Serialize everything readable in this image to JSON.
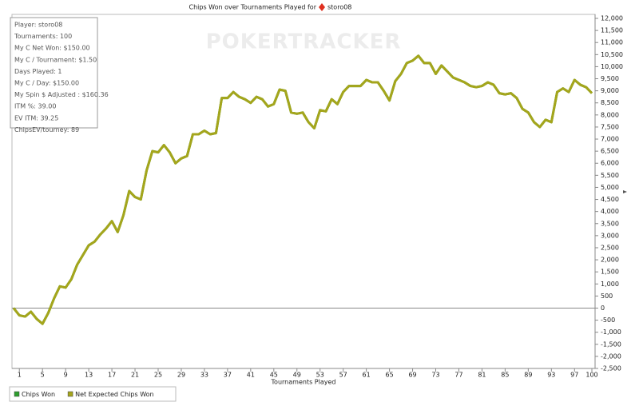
{
  "chart_data": {
    "type": "line",
    "title": "Chips Won over Tournaments Played for",
    "title_player": "storo08",
    "watermark": "POKERTRACKER",
    "xlabel": "Tournaments Played",
    "info": [
      "Player: storo08",
      "Tournaments: 100",
      "My C Net Won: $150.00",
      "My C / Tournament: $1.50",
      "Days Played: 1",
      "My C / Day: $150.00",
      "My Spin $ Adjusted : $160.36",
      "ITM %: 39.00",
      "EV ITM: 39.25",
      "ChipsEV/tourney: 89"
    ],
    "x": [
      0,
      1,
      2,
      3,
      4,
      5,
      6,
      7,
      8,
      9,
      10,
      11,
      12,
      13,
      14,
      15,
      16,
      17,
      18,
      19,
      20,
      21,
      22,
      23,
      24,
      25,
      26,
      27,
      28,
      29,
      30,
      31,
      32,
      33,
      34,
      35,
      36,
      37,
      38,
      39,
      40,
      41,
      42,
      43,
      44,
      45,
      46,
      47,
      48,
      49,
      50,
      51,
      52,
      53,
      54,
      55,
      56,
      57,
      58,
      59,
      60,
      61,
      62,
      63,
      64,
      65,
      66,
      67,
      68,
      69,
      70,
      71,
      72,
      73,
      74,
      75,
      76,
      77,
      78,
      79,
      80,
      81,
      82,
      83,
      84,
      85,
      86,
      87,
      88,
      89,
      90,
      91,
      92,
      93,
      94,
      95,
      96,
      97,
      98,
      99,
      100
    ],
    "series": [
      {
        "name": "Chips Won",
        "color": "#2e9e2e",
        "values": [
          0,
          -300,
          -350,
          -150,
          -450,
          -650,
          -200,
          400,
          900,
          850,
          1200,
          1800,
          2200,
          2600,
          2750,
          3050,
          3300,
          3600,
          3150,
          3850,
          4850,
          4600,
          4500,
          5700,
          6500,
          6450,
          6750,
          6450,
          6000,
          6200,
          6300,
          7200,
          7200,
          7350,
          7200,
          7250,
          8700,
          8700,
          8950,
          8750,
          8650,
          8500,
          8750,
          8650,
          8350,
          8450,
          9050,
          9000,
          8100,
          8050,
          8100,
          7700,
          7450,
          8200,
          8150,
          8650,
          8450,
          8950,
          9200,
          9200,
          9200,
          9450,
          9350,
          9350,
          9000,
          8600,
          9400,
          9700,
          10150,
          10250,
          10450,
          10150,
          10150,
          9700,
          10050,
          9800,
          9550,
          9450,
          9350,
          9200,
          9150,
          9200,
          9350,
          9250,
          8900,
          8850,
          8900,
          8700,
          8250,
          8100,
          7700,
          7500,
          7800,
          7700,
          8950,
          9100,
          8950,
          9450,
          9250,
          9150,
          8900
        ]
      },
      {
        "name": "Net Expected Chips Won",
        "color": "#a5a51c",
        "values": [
          0,
          -300,
          -350,
          -150,
          -450,
          -650,
          -200,
          400,
          900,
          850,
          1200,
          1800,
          2200,
          2600,
          2750,
          3050,
          3300,
          3600,
          3150,
          3850,
          4850,
          4600,
          4500,
          5700,
          6500,
          6450,
          6750,
          6450,
          6000,
          6200,
          6300,
          7200,
          7200,
          7350,
          7200,
          7250,
          8700,
          8700,
          8950,
          8750,
          8650,
          8500,
          8750,
          8650,
          8350,
          8450,
          9050,
          9000,
          8100,
          8050,
          8100,
          7700,
          7450,
          8200,
          8150,
          8650,
          8450,
          8950,
          9200,
          9200,
          9200,
          9450,
          9350,
          9350,
          9000,
          8600,
          9400,
          9700,
          10150,
          10250,
          10450,
          10150,
          10150,
          9700,
          10050,
          9800,
          9550,
          9450,
          9350,
          9200,
          9150,
          9200,
          9350,
          9250,
          8900,
          8850,
          8900,
          8700,
          8250,
          8100,
          7700,
          7500,
          7800,
          7700,
          8950,
          9100,
          8950,
          9450,
          9250,
          9150,
          8900
        ]
      }
    ],
    "xlim": [
      0,
      100
    ],
    "xticks": [
      1,
      5,
      9,
      13,
      17,
      21,
      25,
      29,
      33,
      37,
      41,
      45,
      49,
      53,
      57,
      61,
      65,
      69,
      73,
      77,
      81,
      85,
      89,
      93,
      97,
      100
    ],
    "ylim": [
      -2500,
      12000
    ],
    "yticks": [
      {
        "value": -2500,
        "label": "-2,500"
      },
      {
        "value": -2000,
        "label": "-2,000"
      },
      {
        "value": -1500,
        "label": "-1,500"
      },
      {
        "value": -1000,
        "label": "-1,000"
      },
      -500,
      0,
      500,
      {
        "value": 1000,
        "label": "1,000"
      },
      {
        "value": 1500,
        "label": "1,500"
      },
      {
        "value": 2000,
        "label": "2,000"
      },
      {
        "value": 2500,
        "label": "2,500"
      },
      {
        "value": 3000,
        "label": "3,000"
      },
      {
        "value": 3500,
        "label": "3,500"
      },
      {
        "value": 4000,
        "label": "4,000"
      },
      {
        "value": 4500,
        "label": "4,500"
      },
      {
        "value": 5000,
        "label": "5,000"
      },
      {
        "value": 5500,
        "label": "5,500"
      },
      {
        "value": 6000,
        "label": "6,000"
      },
      {
        "value": 6500,
        "label": "6,500"
      },
      {
        "value": 7000,
        "label": "7,000"
      },
      {
        "value": 7500,
        "label": "7,500"
      },
      {
        "value": 8000,
        "label": "8,000"
      },
      {
        "value": 8500,
        "label": "8,500"
      },
      {
        "value": 9000,
        "label": "9,000"
      },
      {
        "value": 9500,
        "label": "9,500"
      },
      {
        "value": 10000,
        "label": "10,000"
      },
      {
        "value": 10500,
        "label": "10,500"
      },
      {
        "value": 11000,
        "label": "11,000"
      },
      {
        "value": 11500,
        "label": "11,500"
      },
      {
        "value": 12000,
        "label": "12,000"
      }
    ],
    "grid": false
  }
}
